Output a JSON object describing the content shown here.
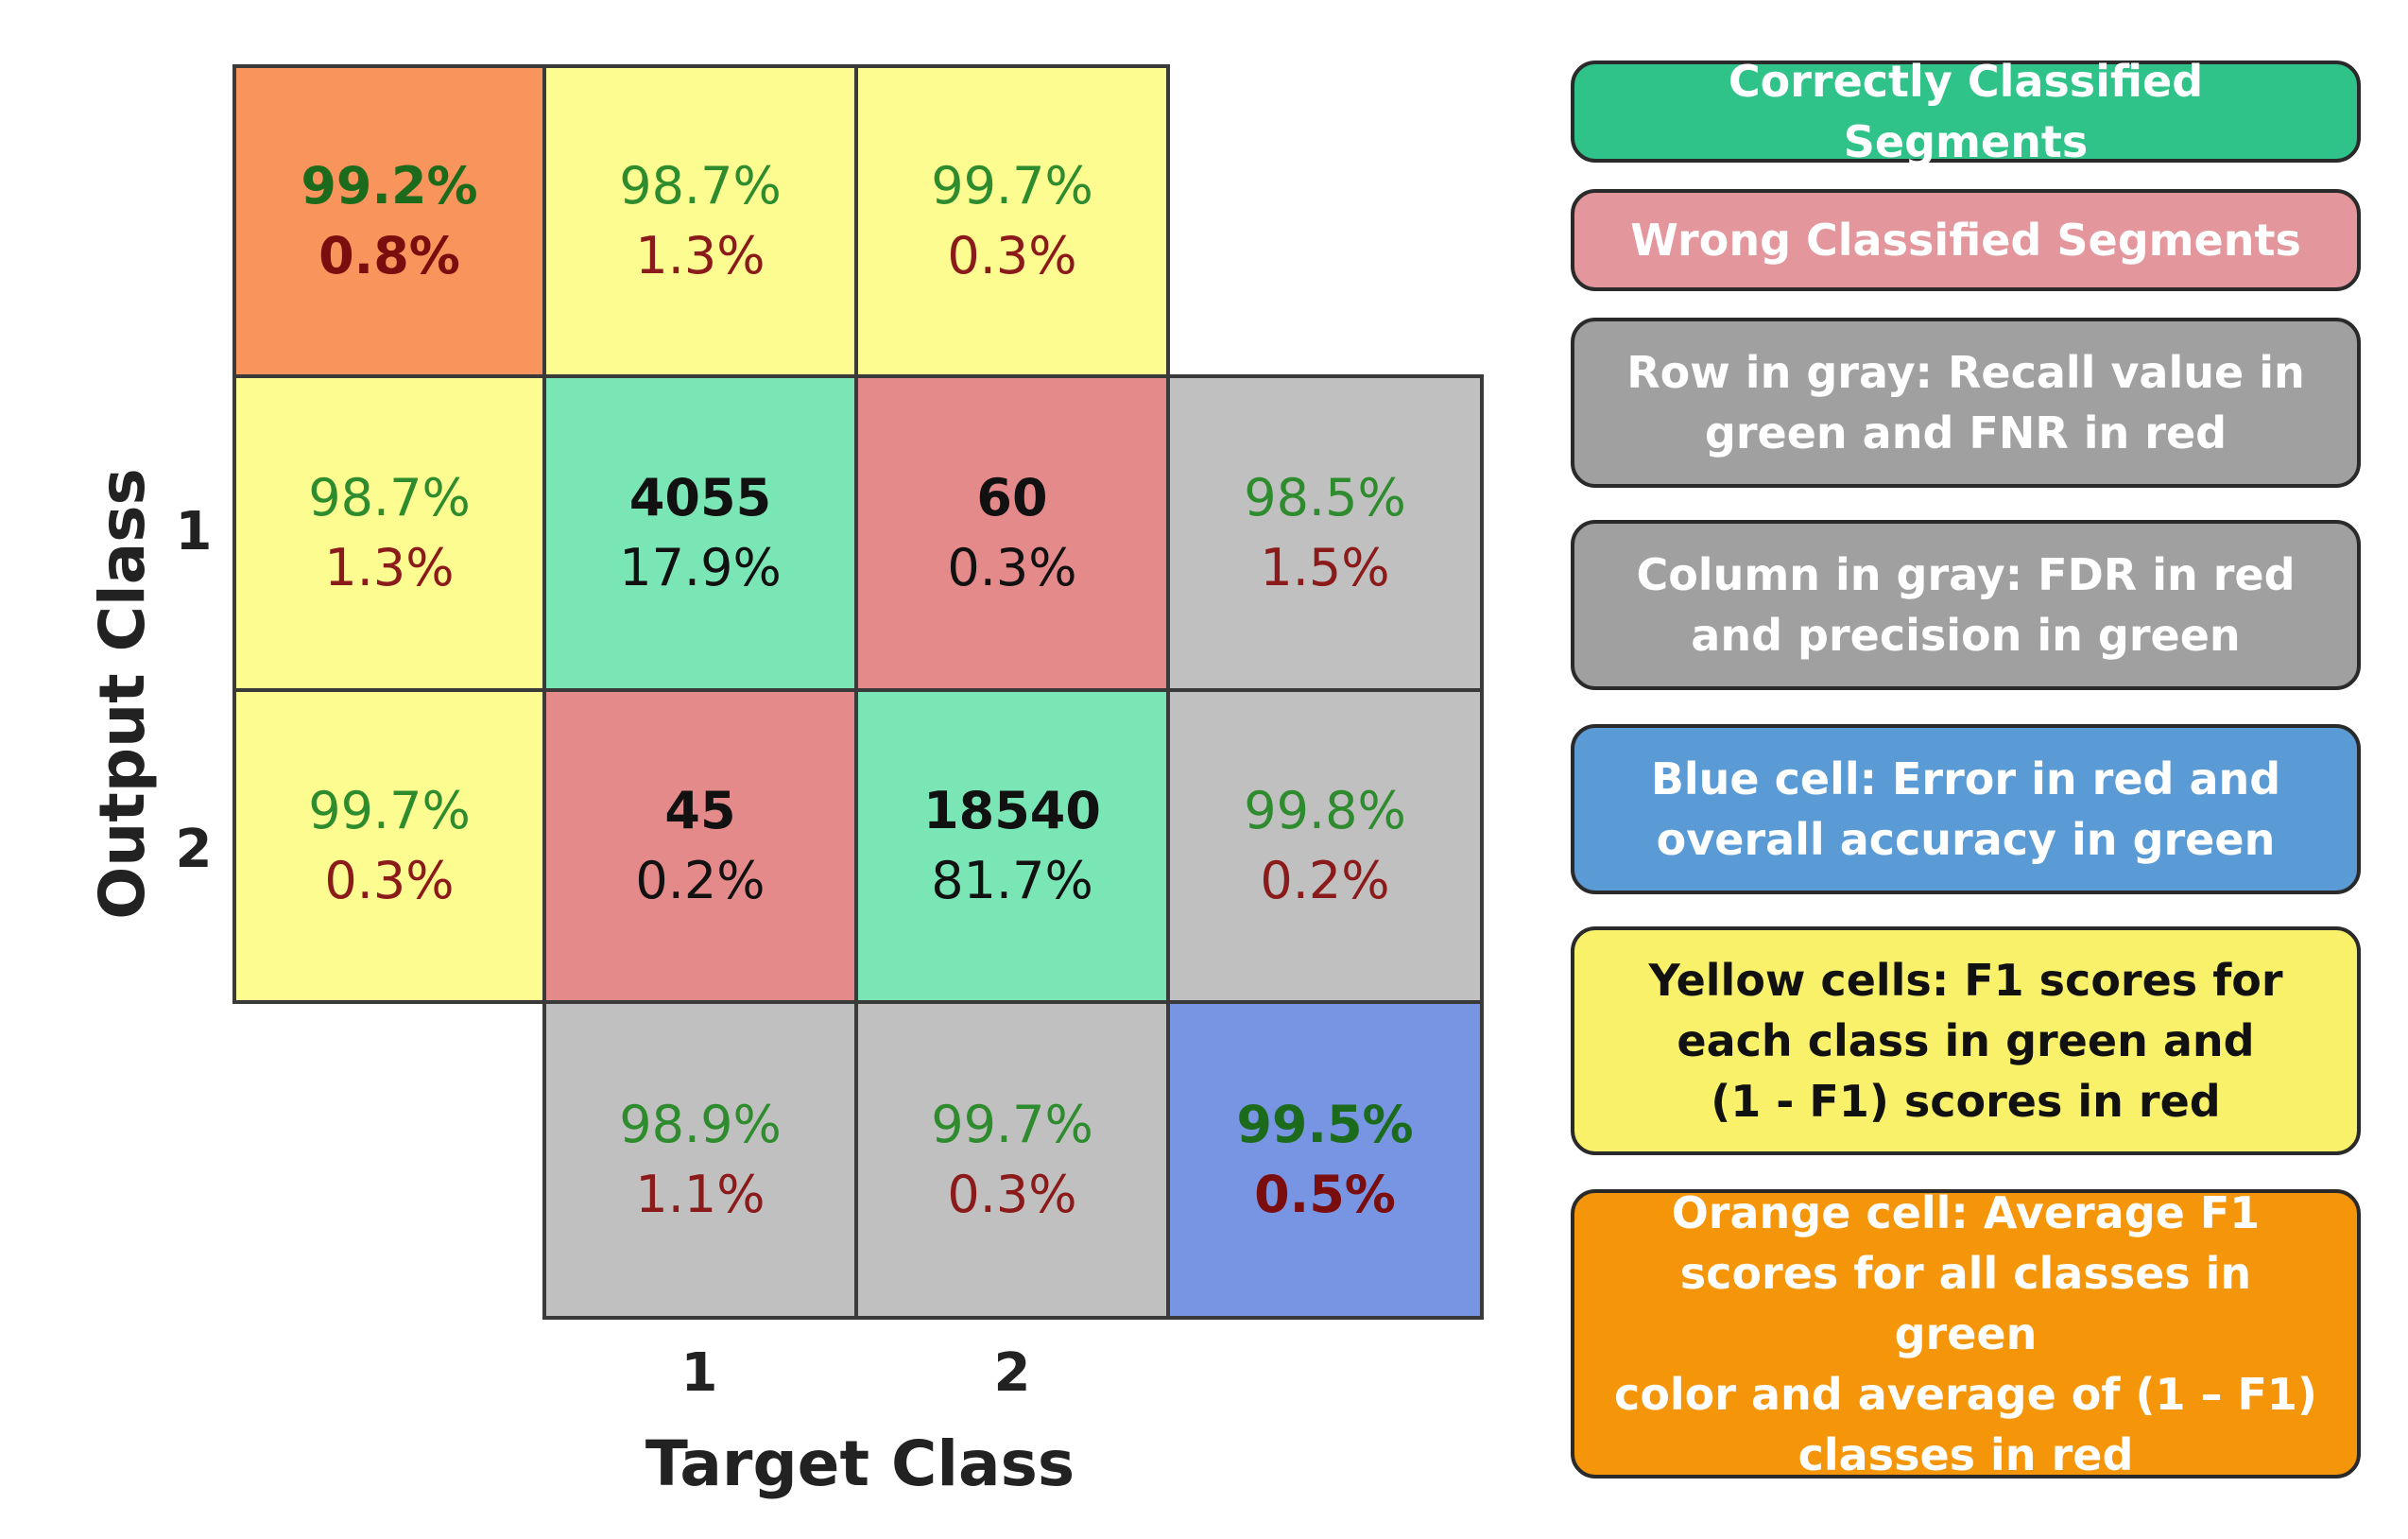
{
  "axes": {
    "x_title": "Target Class",
    "y_title": "Output Class",
    "x_ticks": [
      "1",
      "2"
    ],
    "y_ticks": [
      "1",
      "2"
    ]
  },
  "cells": {
    "corner": {
      "top": "99.2%",
      "bottom": "0.8%"
    },
    "f1_col_1": {
      "top": "98.7%",
      "bottom": "1.3%"
    },
    "f1_col_2": {
      "top": "99.7%",
      "bottom": "0.3%"
    },
    "f1_row_1": {
      "top": "98.7%",
      "bottom": "1.3%"
    },
    "f1_row_2": {
      "top": "99.7%",
      "bottom": "0.3%"
    },
    "r1c1": {
      "top": "4055",
      "bottom": "17.9%"
    },
    "r1c2": {
      "top": "60",
      "bottom": "0.3%"
    },
    "r2c1": {
      "top": "45",
      "bottom": "0.2%"
    },
    "r2c2": {
      "top": "18540",
      "bottom": "81.7%"
    },
    "row_gray_1": {
      "top": "98.5%",
      "bottom": "1.5%"
    },
    "row_gray_2": {
      "top": "99.8%",
      "bottom": "0.2%"
    },
    "col_gray_1": {
      "top": "98.9%",
      "bottom": "1.1%"
    },
    "col_gray_2": {
      "top": "99.7%",
      "bottom": "0.3%"
    },
    "overall": {
      "top": "99.5%",
      "bottom": "0.5%"
    }
  },
  "legend": {
    "correct": "Correctly Classified Segments",
    "wrong": "Wrong Classified Segments",
    "row_gray": "Row in gray: Recall value in\ngreen and FNR in red",
    "col_gray": "Column in gray: FDR in red\nand precision in green",
    "blue": "Blue cell: Error in red and\noverall accuracy in green",
    "yellow": "Yellow cells: F1 scores for\neach class in green and\n(1 - F1) scores in red",
    "orange": "Orange cell: Average F1\nscores for all classes in green\ncolor and average of (1 – F1)\nclasses in red"
  },
  "colors": {
    "orange_cell": "#f9945c",
    "yellow_cell": "#fcfc90",
    "correct_cell": "#7ae6b6",
    "wrong_cell": "#e58a8a",
    "gray_cell": "#c0c0c0",
    "blue_cell": "#7895e4",
    "legend_correct": "#2fc289",
    "legend_wrong": "#e3979d",
    "legend_gray": "#a0a0a0",
    "legend_blue": "#5b9bd5",
    "legend_yellow": "#f9f16a",
    "legend_orange": "#f5960a"
  }
}
